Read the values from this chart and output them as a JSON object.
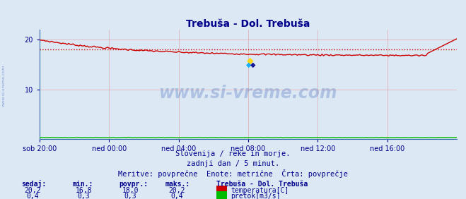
{
  "title_display": "Trebuša - Dol. Trebuša",
  "bg_color": "#dce9f5",
  "plot_bg_color": "#dce9f5",
  "grid_color": "#e08080",
  "temp_color": "#cc0000",
  "flow_color": "#00bb00",
  "avg_temp": 18.0,
  "xlabel_ticks": [
    "sob 20:00",
    "ned 00:00",
    "ned 04:00",
    "ned 08:00",
    "ned 12:00",
    "ned 16:00"
  ],
  "tick_positions": [
    0,
    48,
    96,
    144,
    192,
    240
  ],
  "yticks": [
    10,
    20
  ],
  "ylim": [
    0,
    22
  ],
  "xlim": [
    0,
    288
  ],
  "n_points": 289,
  "subtitle1": "Slovenija / reke in morje.",
  "subtitle2": "zadnji dan / 5 minut.",
  "subtitle3": "Meritve: povprečne  Enote: metrične  Črta: povprečje",
  "legend_title": "Trebuša - Dol. Trebuša",
  "legend_temp": "temperatura[C]",
  "legend_flow": "pretok[m3/s]",
  "stats_headers": [
    "sedaj:",
    "min.:",
    "povpr.:",
    "maks.:"
  ],
  "stats_temp": [
    "20,2",
    "16,8",
    "18,0",
    "20,2"
  ],
  "stats_flow": [
    "0,4",
    "0,3",
    "0,3",
    "0,4"
  ],
  "watermark": "www.si-vreme.com",
  "watermark_color": "#4466bb",
  "watermark_alpha": 0.3,
  "title_color": "#00008b",
  "axis_label_color": "#00008b",
  "stats_color": "#00008b",
  "sidewatermark": "www.si-vreme.com",
  "sidewatermark_color": "#4466bb"
}
